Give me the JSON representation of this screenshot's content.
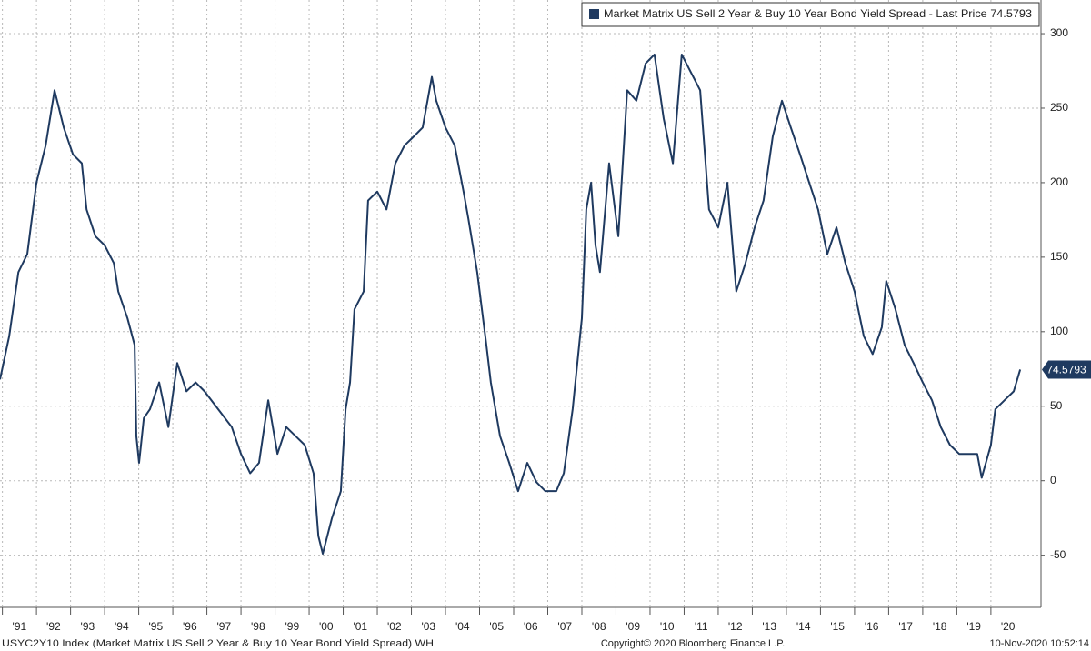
{
  "chart_data": {
    "type": "line",
    "series": [
      {
        "name": "Market Matrix US Sell 2 Year & Buy 10 Year Bond Yield Spread - Last Price 74.5793",
        "color": "#1f3a60",
        "values": [
          68,
          97,
          140,
          152,
          200,
          225,
          262,
          237,
          219,
          213,
          182,
          164,
          158,
          146,
          127,
          109,
          91,
          30,
          12,
          42,
          48,
          66,
          36,
          79,
          60,
          66,
          60,
          48,
          36,
          18,
          5,
          12,
          54,
          18,
          36,
          30,
          24,
          5,
          -37,
          -49,
          -25,
          -7,
          48,
          66,
          115,
          127,
          188,
          194,
          182,
          213,
          225,
          231,
          237,
          271,
          255,
          237,
          225,
          194,
          176,
          140,
          91,
          66,
          30,
          12,
          -7,
          12,
          -1,
          -7,
          -7,
          5,
          48,
          109,
          182,
          200,
          158,
          140,
          213,
          164,
          262,
          255,
          280,
          286,
          243,
          213,
          286,
          274,
          262,
          182,
          170,
          200,
          127,
          146,
          170,
          188,
          231,
          255,
          237,
          219,
          200,
          182,
          152,
          170,
          146,
          127,
          97,
          85,
          103,
          134,
          115,
          91,
          79,
          66,
          54,
          36,
          24,
          18,
          18,
          18,
          2,
          24,
          48,
          54,
          60,
          74.5793
        ]
      }
    ],
    "x": [
      1990.93,
      1991.2,
      1991.47,
      1991.73,
      1992.0,
      1992.27,
      1992.53,
      1992.8,
      1993.07,
      1993.33,
      1993.47,
      1993.73,
      1994.0,
      1994.27,
      1994.4,
      1994.67,
      1994.88,
      1994.93,
      1995.01,
      1995.15,
      1995.33,
      1995.6,
      1995.87,
      1996.13,
      1996.4,
      1996.67,
      1996.93,
      1997.33,
      1997.73,
      1998.0,
      1998.27,
      1998.53,
      1998.8,
      1999.07,
      1999.33,
      1999.6,
      1999.87,
      2000.13,
      2000.27,
      2000.4,
      2000.67,
      2000.93,
      2001.07,
      2001.2,
      2001.33,
      2001.6,
      2001.73,
      2002.0,
      2002.27,
      2002.53,
      2002.8,
      2003.07,
      2003.33,
      2003.6,
      2003.73,
      2004.0,
      2004.27,
      2004.53,
      2004.67,
      2004.93,
      2005.2,
      2005.33,
      2005.6,
      2005.87,
      2006.13,
      2006.4,
      2006.67,
      2006.93,
      2007.25,
      2007.47,
      2007.73,
      2008.0,
      2008.13,
      2008.27,
      2008.4,
      2008.53,
      2008.8,
      2009.07,
      2009.33,
      2009.6,
      2009.87,
      2010.13,
      2010.4,
      2010.67,
      2010.93,
      2011.2,
      2011.47,
      2011.73,
      2012.0,
      2012.27,
      2012.53,
      2012.8,
      2013.07,
      2013.33,
      2013.6,
      2013.87,
      2014.13,
      2014.4,
      2014.67,
      2014.93,
      2015.2,
      2015.47,
      2015.73,
      2016.0,
      2016.27,
      2016.53,
      2016.8,
      2016.93,
      2017.2,
      2017.47,
      2017.73,
      2018.0,
      2018.27,
      2018.53,
      2018.8,
      2019.07,
      2019.33,
      2019.6,
      2019.73,
      2020.0,
      2020.13,
      2020.4,
      2020.67,
      2020.86
    ],
    "xlim": [
      1990.93,
      2021.47
    ],
    "xticks": [
      {
        "value": 1991,
        "label": "'91"
      },
      {
        "value": 1992,
        "label": "'92"
      },
      {
        "value": 1993,
        "label": "'93"
      },
      {
        "value": 1994,
        "label": "'94"
      },
      {
        "value": 1995,
        "label": "'95"
      },
      {
        "value": 1996,
        "label": "'96"
      },
      {
        "value": 1997,
        "label": "'97"
      },
      {
        "value": 1998,
        "label": "'98"
      },
      {
        "value": 1999,
        "label": "'99"
      },
      {
        "value": 2000,
        "label": "'00"
      },
      {
        "value": 2001,
        "label": "'01"
      },
      {
        "value": 2002,
        "label": "'02"
      },
      {
        "value": 2003,
        "label": "'03"
      },
      {
        "value": 2004,
        "label": "'04"
      },
      {
        "value": 2005,
        "label": "'05"
      },
      {
        "value": 2006,
        "label": "'06"
      },
      {
        "value": 2007,
        "label": "'07"
      },
      {
        "value": 2008,
        "label": "'08"
      },
      {
        "value": 2009,
        "label": "'09"
      },
      {
        "value": 2010,
        "label": "'10"
      },
      {
        "value": 2011,
        "label": "'11"
      },
      {
        "value": 2012,
        "label": "'12"
      },
      {
        "value": 2013,
        "label": "'13"
      },
      {
        "value": 2014,
        "label": "'14"
      },
      {
        "value": 2015,
        "label": "'15"
      },
      {
        "value": 2016,
        "label": "'16"
      },
      {
        "value": 2017,
        "label": "'17"
      },
      {
        "value": 2018,
        "label": "'18"
      },
      {
        "value": 2019,
        "label": "'19"
      },
      {
        "value": 2020,
        "label": "'20"
      }
    ],
    "ylim": [
      -85,
      322.6
    ],
    "yticks": [
      -50,
      0,
      50,
      100,
      150,
      200,
      250,
      300
    ],
    "grid": true,
    "legend": "top-right",
    "footer_left": "USYC2Y10 Index (Market Matrix US Sell 2 Year & Buy 10 Year Bond Yield Spread) WH",
    "footer_center": "Copyright© 2020 Bloomberg Finance L.P.",
    "footer_right": "10-Nov-2020 10:52:14"
  }
}
